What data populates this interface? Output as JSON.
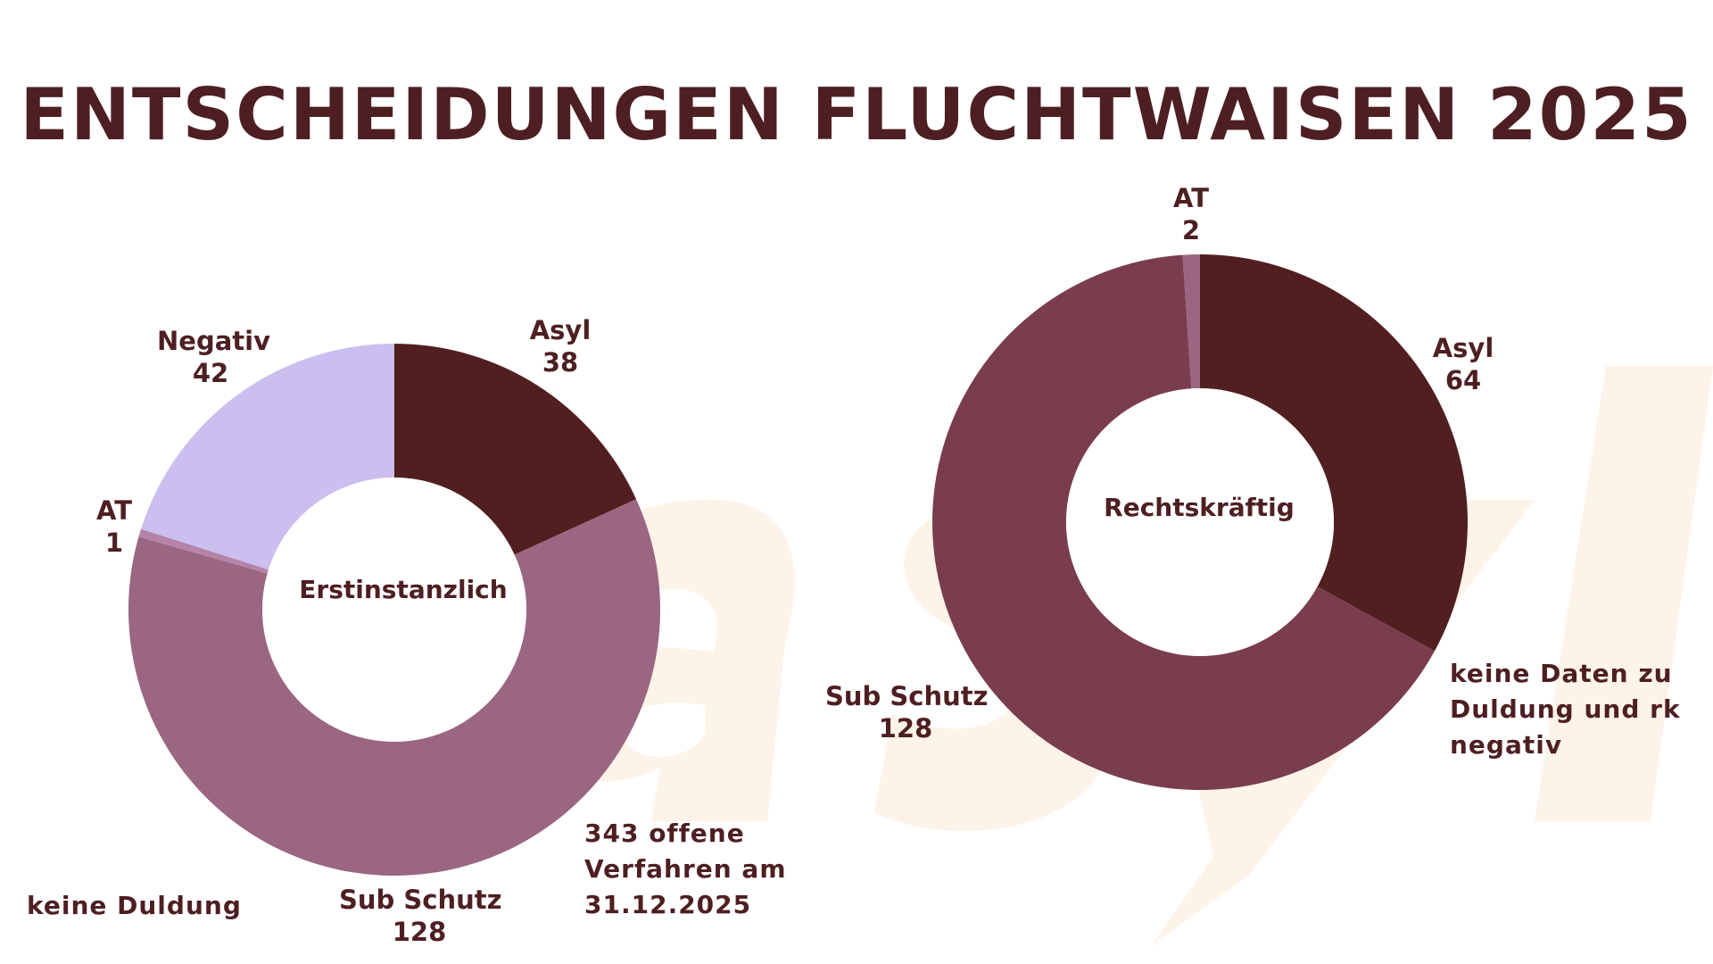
{
  "title": "ENTSCHEIDUNGEN FLUCHTWAISEN 2025",
  "colors": {
    "text": "#4e1f22",
    "watermark": "#fdf3e8",
    "asyl": "#521f20",
    "sub_schutz_left": "#9b6681",
    "sub_schutz_right": "#7a3d4e",
    "at_left": "#b584a9",
    "at_right": "#9b6681",
    "negativ": "#cbbff0"
  },
  "watermark_text": "asyl",
  "chart_data": [
    {
      "type": "pie",
      "hole_label": "Erstinstanzlich",
      "slices": [
        {
          "name": "Asyl",
          "value": 38
        },
        {
          "name": "Sub Schutz",
          "value": 128
        },
        {
          "name": "AT",
          "value": 1
        },
        {
          "name": "Negativ",
          "value": 42
        }
      ]
    },
    {
      "type": "pie",
      "hole_label": "Rechtskräftig",
      "slices": [
        {
          "name": "Asyl",
          "value": 64
        },
        {
          "name": "Sub Schutz",
          "value": 128
        },
        {
          "name": "AT",
          "value": 2
        }
      ]
    }
  ],
  "notes": {
    "left": "keine Duldung",
    "open_cases": [
      "343 offene",
      "Verfahren am",
      "31.12.2025"
    ],
    "right": [
      "keine Daten zu",
      "Duldung und rk",
      "negativ"
    ]
  }
}
